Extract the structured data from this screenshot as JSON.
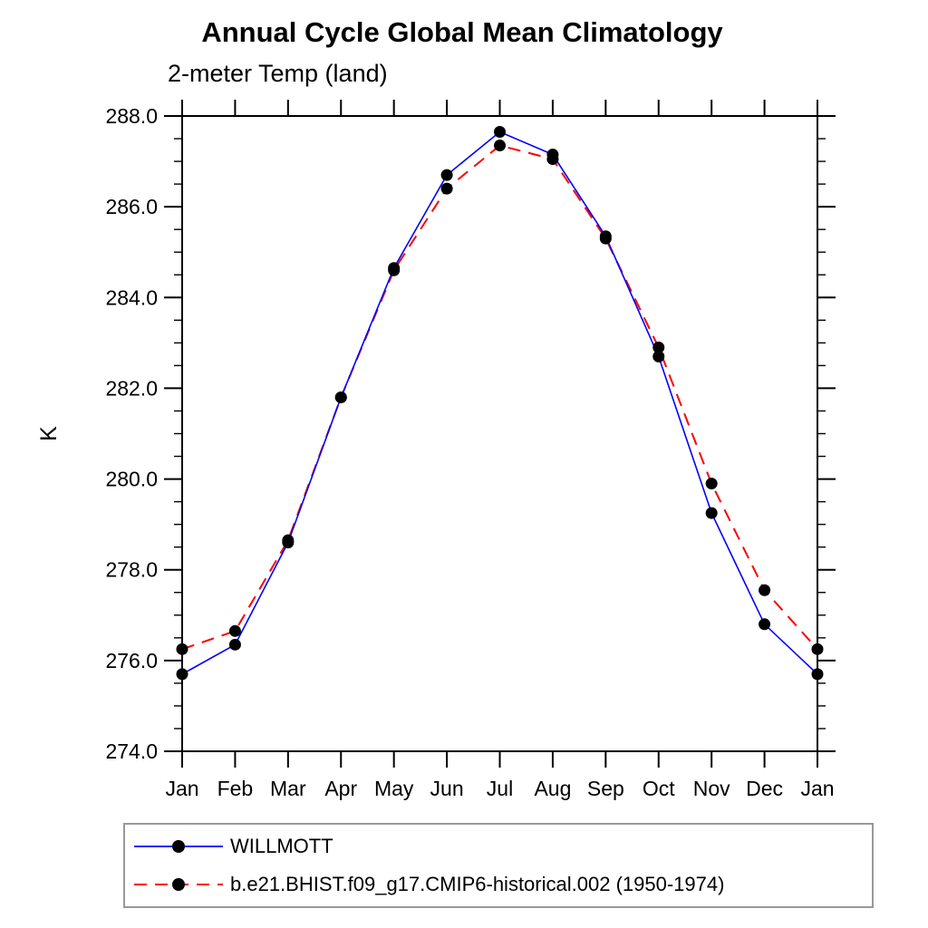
{
  "chart_data": {
    "type": "line",
    "title": "Annual Cycle Global Mean Climatology",
    "subtitle": "2-meter Temp (land)",
    "ylabel": "K",
    "xlabel": "",
    "categories": [
      "Jan",
      "Feb",
      "Mar",
      "Apr",
      "May",
      "Jun",
      "Jul",
      "Aug",
      "Sep",
      "Oct",
      "Nov",
      "Dec",
      "Jan"
    ],
    "ylim": [
      274.0,
      288.0
    ],
    "ytick_major_interval": 2.0,
    "ytick_minor_interval": 0.5,
    "ytick_labels": [
      "274.0",
      "276.0",
      "278.0",
      "280.0",
      "282.0",
      "284.0",
      "286.0",
      "288.0"
    ],
    "grid": false,
    "legend_position": "bottom-left-box",
    "marker_color": "#000000",
    "axis_color": "#000000",
    "legend_border_color": "#999999",
    "series": [
      {
        "name": "WILLMOTT",
        "color": "#0000ff",
        "line_style": "solid",
        "marker": "filled-circle",
        "values": [
          275.7,
          276.35,
          278.6,
          281.8,
          284.65,
          286.7,
          287.65,
          287.15,
          285.35,
          282.7,
          279.25,
          276.8,
          275.7
        ]
      },
      {
        "name": "b.e21.BHIST.f09_g17.CMIP6-historical.002 (1950-1974)",
        "color": "#ff0000",
        "line_style": "dashed",
        "marker": "filled-circle",
        "values": [
          276.25,
          276.65,
          278.65,
          281.8,
          284.6,
          286.4,
          287.35,
          287.05,
          285.3,
          282.9,
          279.9,
          277.55,
          276.25
        ]
      }
    ]
  }
}
